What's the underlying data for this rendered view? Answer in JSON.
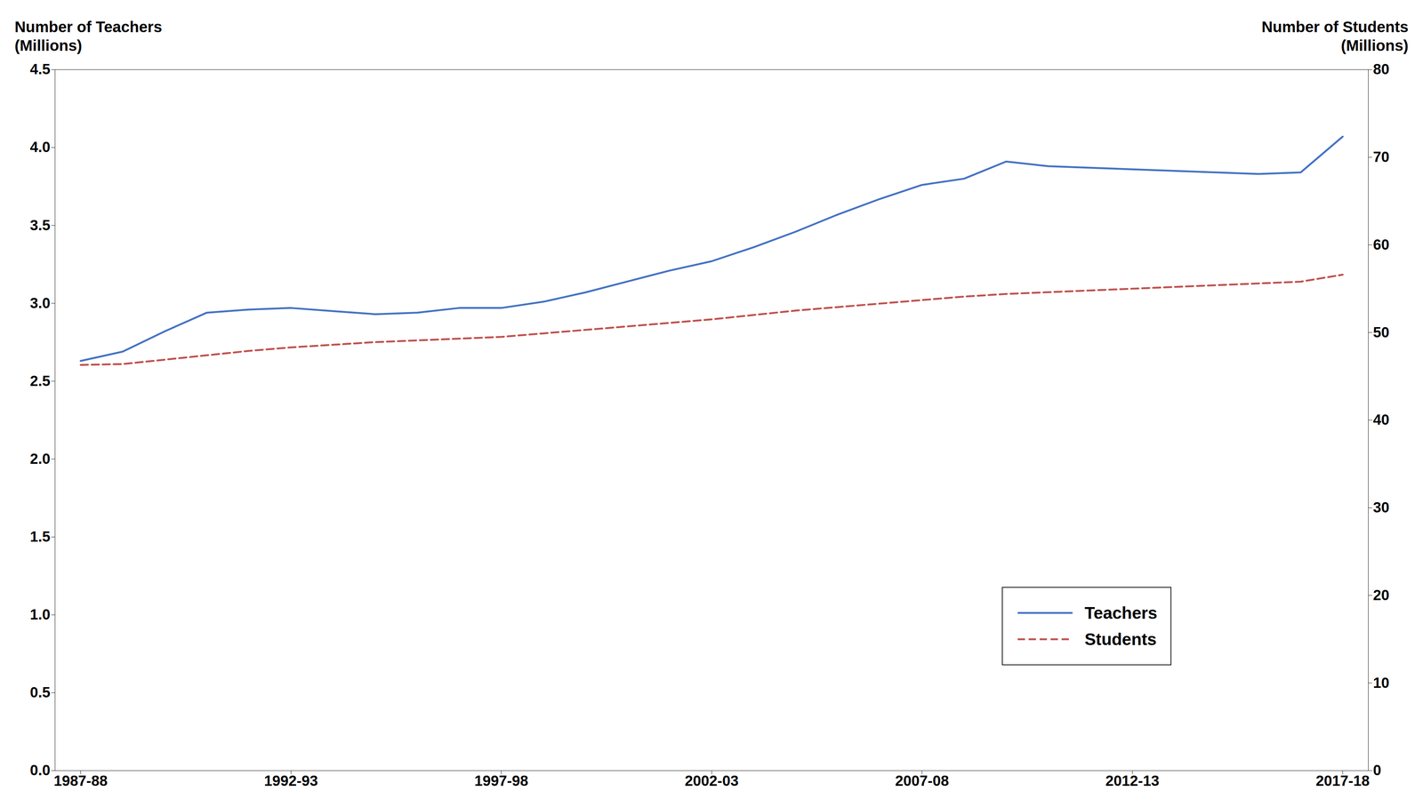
{
  "chart_data": {
    "type": "line",
    "ylabel": "Number of Teachers\n(Millions)",
    "y2label": "Number of Students\n(Millions)",
    "categories": [
      "1987-88",
      null,
      null,
      null,
      null,
      "1992-93",
      null,
      null,
      null,
      null,
      "1997-98",
      null,
      null,
      null,
      null,
      "2002-03",
      null,
      null,
      null,
      null,
      "2007-08",
      null,
      null,
      null,
      null,
      "2012-13",
      null,
      null,
      null,
      null,
      "2017-18"
    ],
    "series": [
      {
        "name": "Teachers",
        "color": "#4472C4",
        "line_style": "solid",
        "values": [
          2.63,
          2.69,
          2.82,
          2.94,
          2.96,
          2.97,
          2.95,
          2.93,
          2.94,
          2.97,
          2.97,
          3.01,
          3.07,
          3.14,
          3.21,
          3.27,
          3.36,
          3.46,
          3.57,
          3.67,
          3.76,
          3.8,
          3.91,
          3.88,
          3.87,
          3.86,
          3.85,
          3.84,
          3.83,
          3.84,
          4.07
        ]
      },
      {
        "name": "Students",
        "color": "#C0504D",
        "line_style": "dashed",
        "axis": "y2",
        "values": [
          46.3,
          46.4,
          46.9,
          47.4,
          47.9,
          48.3,
          48.6,
          48.9,
          49.1,
          49.3,
          49.5,
          49.9,
          50.3,
          50.7,
          51.1,
          51.5,
          52.0,
          52.5,
          52.9,
          53.3,
          53.7,
          54.1,
          54.4,
          54.6,
          54.8,
          55.0,
          55.2,
          55.4,
          55.6,
          55.8,
          56.6
        ]
      }
    ],
    "ylim": [
      0,
      4.5
    ],
    "yticks": [
      {
        "value": 0,
        "label": "0.0"
      },
      0.5,
      {
        "value": 1,
        "label": "1.0"
      },
      1.5,
      {
        "value": 2,
        "label": "2.0"
      },
      2.5,
      {
        "value": 3,
        "label": "3.0"
      },
      3.5,
      {
        "value": 4,
        "label": "4.0"
      },
      4.5
    ],
    "y2lim": [
      0,
      80
    ],
    "y2ticks": [
      0,
      10,
      20,
      30,
      40,
      50,
      60,
      70,
      80
    ],
    "grid": false,
    "legend": "lower right"
  }
}
